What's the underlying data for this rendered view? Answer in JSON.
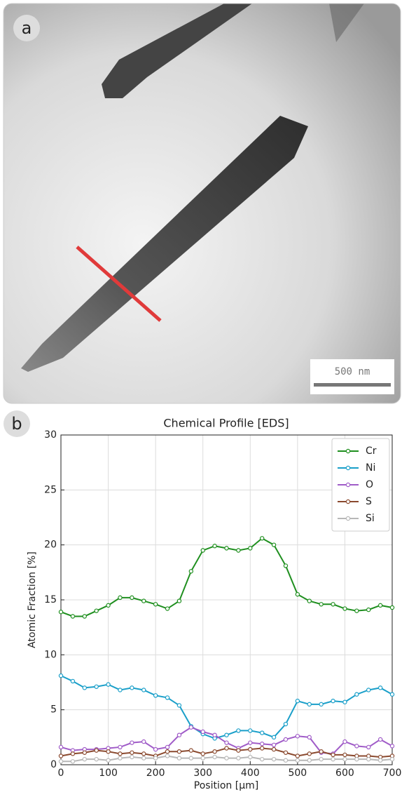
{
  "image_panel": {
    "label": "a",
    "scale_bar": "500 nm"
  },
  "chart_label": "b",
  "chart_data": {
    "type": "line",
    "title": "Chemical Profile [EDS]",
    "x_label": "Position [μm]",
    "y_label": "Atomic Fraction [%]",
    "x": [
      0,
      25,
      50,
      75,
      100,
      125,
      150,
      175,
      200,
      225,
      250,
      275,
      300,
      325,
      350,
      375,
      400,
      425,
      450,
      475,
      500,
      525,
      550,
      575,
      600,
      625,
      650,
      675,
      700
    ],
    "series": [
      {
        "name": "Cr",
        "color": "#1f8f1f",
        "values": [
          13.9,
          13.5,
          13.5,
          14.0,
          14.5,
          15.2,
          15.2,
          14.9,
          14.6,
          14.2,
          14.9,
          17.6,
          19.5,
          19.9,
          19.7,
          19.5,
          19.7,
          20.6,
          20.0,
          18.1,
          15.5,
          14.9,
          14.6,
          14.6,
          14.2,
          14.0,
          14.1,
          14.5,
          14.3
        ]
      },
      {
        "name": "Ni",
        "color": "#1a9fc9",
        "values": [
          8.1,
          7.6,
          7.0,
          7.1,
          7.3,
          6.8,
          7.0,
          6.8,
          6.3,
          6.1,
          5.4,
          3.5,
          2.8,
          2.4,
          2.7,
          3.1,
          3.1,
          2.9,
          2.5,
          3.7,
          5.8,
          5.5,
          5.5,
          5.8,
          5.7,
          6.4,
          6.8,
          7.0,
          6.4
        ]
      },
      {
        "name": "O",
        "color": "#a05cc8",
        "values": [
          1.6,
          1.3,
          1.4,
          1.4,
          1.5,
          1.6,
          2.0,
          2.1,
          1.4,
          1.6,
          2.7,
          3.4,
          3.0,
          2.7,
          2.0,
          1.5,
          2.0,
          1.9,
          1.8,
          2.3,
          2.6,
          2.5,
          1.1,
          1.0,
          2.1,
          1.7,
          1.6,
          2.3,
          1.7
        ]
      },
      {
        "name": "S",
        "color": "#8b4a2f",
        "values": [
          0.8,
          1.0,
          1.1,
          1.3,
          1.2,
          1.0,
          1.1,
          1.0,
          0.8,
          1.2,
          1.2,
          1.3,
          1.0,
          1.2,
          1.5,
          1.3,
          1.4,
          1.5,
          1.4,
          1.1,
          0.8,
          1.0,
          1.2,
          0.9,
          0.9,
          0.8,
          0.8,
          0.7,
          0.8
        ]
      },
      {
        "name": "Si",
        "color": "#b8b8b8",
        "values": [
          0.3,
          0.3,
          0.5,
          0.5,
          0.4,
          0.6,
          0.7,
          0.6,
          0.6,
          0.8,
          0.6,
          0.6,
          0.6,
          0.7,
          0.6,
          0.6,
          0.7,
          0.5,
          0.5,
          0.4,
          0.4,
          0.4,
          0.5,
          0.5,
          0.5,
          0.5,
          0.5,
          0.4,
          0.5
        ]
      }
    ],
    "xlim": [
      0,
      700
    ],
    "xticks": [
      0,
      100,
      200,
      300,
      400,
      500,
      600,
      700
    ],
    "ylim": [
      0,
      30
    ],
    "yticks": [
      0,
      5,
      10,
      15,
      20,
      25,
      30
    ],
    "grid": true,
    "legend": "upper right"
  }
}
